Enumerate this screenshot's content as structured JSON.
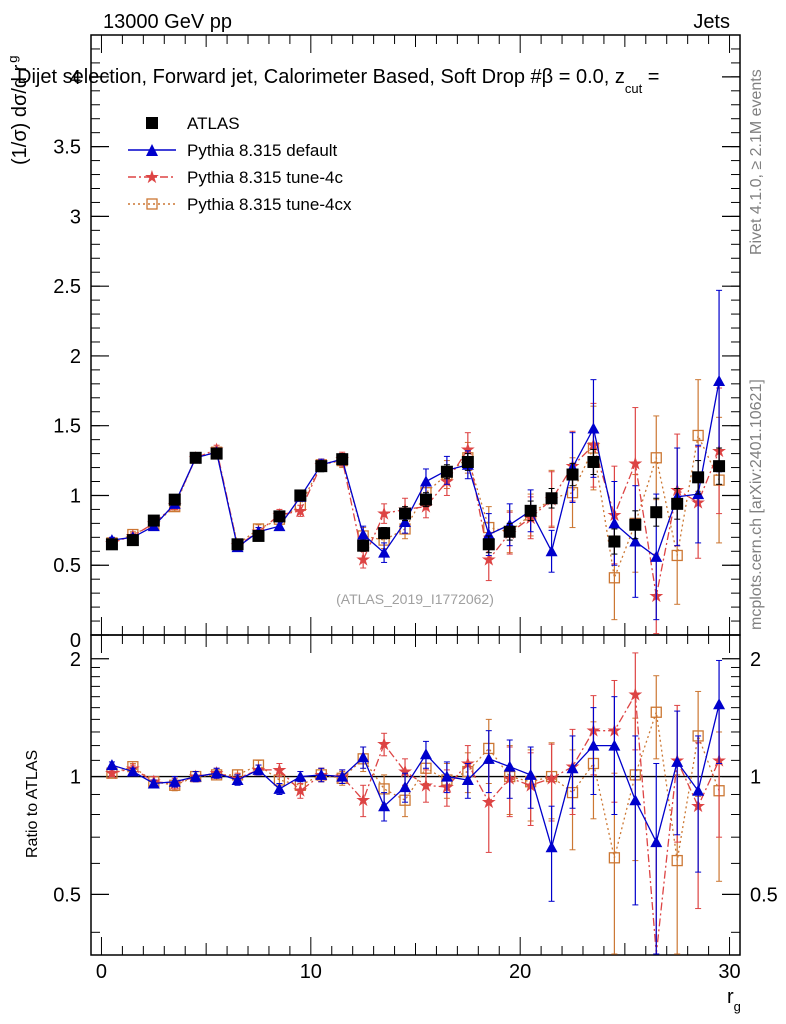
{
  "header": {
    "energy": "13000 GeV pp",
    "category": "Jets",
    "title": "Dijet selection, Forward jet, Calorimeter Based, Soft Drop #β = 0.0, z",
    "title_sub": "cut",
    "title_tail": " ="
  },
  "side_labels": {
    "rivet": "Rivet 4.1.0, ≥ 2.1M events",
    "mcplots": "mcplots.cern.ch [arXiv:2401.10621]"
  },
  "analysis_id": "(ATLAS_2019_I1772062)",
  "colors": {
    "data": "#000000",
    "default": "#0000cc",
    "tune4c": "#dd4444",
    "tune4cx": "#cc7733"
  },
  "chart_data": [
    {
      "type": "scatter",
      "panel": "main",
      "ylabel": "(1/σ) dσ/d r",
      "ylabel_sub": "g",
      "xlim": [
        -0.5,
        30.5
      ],
      "ylim": [
        0,
        4.3
      ],
      "yticks": [
        "0",
        "0.5",
        "1",
        "1.5",
        "2",
        "2.5",
        "3",
        "3.5",
        "4"
      ],
      "ytick_values": [
        0,
        0.5,
        1,
        1.5,
        2,
        2.5,
        3,
        3.5,
        4
      ],
      "x": [
        0.5,
        1.5,
        2.5,
        3.5,
        4.5,
        5.5,
        6.5,
        7.5,
        8.5,
        9.5,
        10.5,
        11.5,
        12.5,
        13.5,
        14.5,
        15.5,
        16.5,
        17.5,
        18.5,
        19.5,
        20.5,
        21.5,
        22.5,
        23.5,
        24.5,
        25.5,
        26.5,
        27.5,
        28.5,
        29.5
      ],
      "legend": [
        "ATLAS",
        "Pythia 8.315 default",
        "Pythia 8.315 tune-4c",
        "Pythia 8.315 tune-4cx"
      ],
      "series": [
        {
          "name": "ATLAS",
          "values": [
            0.65,
            0.68,
            0.82,
            0.97,
            1.27,
            1.3,
            0.65,
            0.71,
            0.85,
            1.0,
            1.21,
            1.26,
            0.64,
            0.73,
            0.87,
            0.97,
            1.17,
            1.24,
            0.65,
            0.74,
            0.89,
            0.98,
            1.15,
            1.24,
            0.67,
            0.79,
            0.88,
            0.94,
            1.13,
            1.21
          ],
          "errors": [
            0.02,
            0.02,
            0.02,
            0.03,
            0.03,
            0.03,
            0.02,
            0.02,
            0.03,
            0.03,
            0.04,
            0.04,
            0.04,
            0.04,
            0.05,
            0.05,
            0.05,
            0.06,
            0.06,
            0.06,
            0.07,
            0.07,
            0.08,
            0.09,
            0.09,
            0.1,
            0.1,
            0.11,
            0.12,
            0.13
          ]
        },
        {
          "name": "Pythia 8.315 default",
          "values": [
            0.68,
            0.7,
            0.78,
            0.94,
            1.27,
            1.31,
            0.63,
            0.74,
            0.78,
            0.99,
            1.22,
            1.26,
            0.72,
            0.59,
            0.81,
            1.1,
            1.18,
            1.22,
            0.72,
            0.79,
            0.89,
            0.6,
            1.2,
            1.48,
            0.8,
            0.67,
            0.56,
            0.99,
            1.01,
            1.82
          ],
          "errors": [
            0.02,
            0.02,
            0.02,
            0.03,
            0.03,
            0.03,
            0.02,
            0.03,
            0.03,
            0.03,
            0.04,
            0.04,
            0.06,
            0.07,
            0.08,
            0.09,
            0.1,
            0.1,
            0.15,
            0.15,
            0.15,
            0.15,
            0.25,
            0.35,
            0.3,
            0.4,
            0.45,
            0.35,
            0.35,
            0.65
          ]
        },
        {
          "name": "Pythia 8.315 tune-4c",
          "values": [
            0.66,
            0.71,
            0.8,
            0.93,
            1.27,
            1.33,
            0.64,
            0.74,
            0.86,
            0.89,
            1.22,
            1.26,
            0.54,
            0.87,
            0.9,
            0.92,
            1.1,
            1.33,
            0.54,
            0.73,
            0.84,
            0.97,
            1.21,
            1.36,
            0.86,
            1.23,
            0.28,
            1.04,
            0.95,
            1.32
          ],
          "errors": [
            0.02,
            0.02,
            0.03,
            0.03,
            0.03,
            0.03,
            0.03,
            0.03,
            0.04,
            0.04,
            0.04,
            0.05,
            0.06,
            0.07,
            0.08,
            0.08,
            0.1,
            0.12,
            0.15,
            0.15,
            0.15,
            0.2,
            0.25,
            0.3,
            0.35,
            0.4,
            0.3,
            0.4,
            0.4,
            0.45
          ]
        },
        {
          "name": "Pythia 8.315 tune-4cx",
          "values": [
            0.66,
            0.72,
            0.79,
            0.92,
            1.27,
            1.31,
            0.65,
            0.76,
            0.83,
            0.93,
            1.22,
            1.25,
            0.71,
            0.68,
            0.76,
            1.02,
            1.15,
            1.27,
            0.77,
            0.74,
            0.86,
            0.98,
            1.02,
            1.34,
            0.41,
            0.8,
            1.27,
            0.57,
            1.43,
            1.11
          ],
          "errors": [
            0.02,
            0.02,
            0.03,
            0.03,
            0.03,
            0.03,
            0.03,
            0.03,
            0.04,
            0.04,
            0.04,
            0.05,
            0.06,
            0.06,
            0.07,
            0.08,
            0.1,
            0.11,
            0.15,
            0.15,
            0.15,
            0.2,
            0.25,
            0.3,
            0.3,
            0.35,
            0.3,
            0.35,
            0.4,
            0.45
          ]
        }
      ]
    },
    {
      "type": "scatter",
      "panel": "ratio",
      "ylabel": "Ratio to ATLAS",
      "xlabel": "r",
      "xlabel_sub": "g",
      "xlim": [
        -0.5,
        30.5
      ],
      "ylim": [
        0.35,
        2.3
      ],
      "yticks": [
        "0.5",
        "1",
        "2"
      ],
      "ytick_values": [
        0.5,
        1,
        2
      ],
      "xticks": [
        "0",
        "10",
        "20",
        "30"
      ],
      "xtick_values": [
        0,
        10,
        20,
        30
      ],
      "x": [
        0.5,
        1.5,
        2.5,
        3.5,
        4.5,
        5.5,
        6.5,
        7.5,
        8.5,
        9.5,
        10.5,
        11.5,
        12.5,
        13.5,
        14.5,
        15.5,
        16.5,
        17.5,
        18.5,
        19.5,
        20.5,
        21.5,
        22.5,
        23.5,
        24.5,
        25.5,
        26.5,
        27.5,
        28.5,
        29.5
      ],
      "series": [
        {
          "name": "Pythia 8.315 default",
          "values": [
            1.07,
            1.03,
            0.96,
            0.97,
            1.0,
            1.02,
            0.98,
            1.04,
            0.93,
            1.0,
            1.01,
            1.0,
            1.12,
            0.84,
            0.94,
            1.14,
            1.0,
            0.98,
            1.11,
            1.06,
            1.01,
            0.66,
            1.05,
            1.2,
            1.2,
            0.87,
            0.68,
            1.09,
            0.92,
            1.53
          ],
          "errors": [
            0.02,
            0.02,
            0.02,
            0.03,
            0.03,
            0.03,
            0.03,
            0.03,
            0.03,
            0.03,
            0.04,
            0.04,
            0.07,
            0.07,
            0.08,
            0.09,
            0.09,
            0.1,
            0.2,
            0.18,
            0.18,
            0.18,
            0.22,
            0.3,
            0.4,
            0.4,
            0.4,
            0.38,
            0.35,
            0.45
          ]
        },
        {
          "name": "Pythia 8.315 tune-4c",
          "values": [
            1.02,
            1.05,
            0.97,
            0.96,
            1.0,
            1.02,
            0.99,
            1.04,
            1.04,
            0.92,
            1.01,
            1.0,
            0.87,
            1.21,
            1.03,
            0.95,
            0.94,
            1.08,
            0.86,
            0.99,
            0.95,
            0.99,
            1.06,
            1.31,
            1.31,
            1.62,
            0.33,
            1.1,
            0.84,
            1.1
          ],
          "errors": [
            0.02,
            0.02,
            0.03,
            0.03,
            0.03,
            0.03,
            0.03,
            0.03,
            0.04,
            0.04,
            0.04,
            0.04,
            0.08,
            0.08,
            0.08,
            0.09,
            0.1,
            0.12,
            0.22,
            0.2,
            0.2,
            0.22,
            0.26,
            0.3,
            0.45,
            0.45,
            0.35,
            0.42,
            0.38,
            0.4
          ]
        },
        {
          "name": "Pythia 8.315 tune-4cx",
          "values": [
            1.02,
            1.06,
            0.97,
            0.95,
            1.0,
            1.01,
            1.01,
            1.07,
            0.98,
            0.95,
            1.01,
            0.99,
            1.11,
            0.93,
            0.87,
            1.05,
            0.98,
            1.03,
            1.18,
            1.0,
            0.97,
            1.0,
            0.91,
            1.08,
            0.62,
            1.01,
            1.46,
            0.61,
            1.27,
            0.92
          ],
          "errors": [
            0.02,
            0.02,
            0.03,
            0.03,
            0.03,
            0.03,
            0.03,
            0.03,
            0.04,
            0.04,
            0.04,
            0.04,
            0.08,
            0.08,
            0.08,
            0.09,
            0.1,
            0.12,
            0.22,
            0.2,
            0.2,
            0.22,
            0.26,
            0.3,
            0.4,
            0.4,
            0.35,
            0.4,
            0.38,
            0.38
          ]
        }
      ]
    }
  ]
}
